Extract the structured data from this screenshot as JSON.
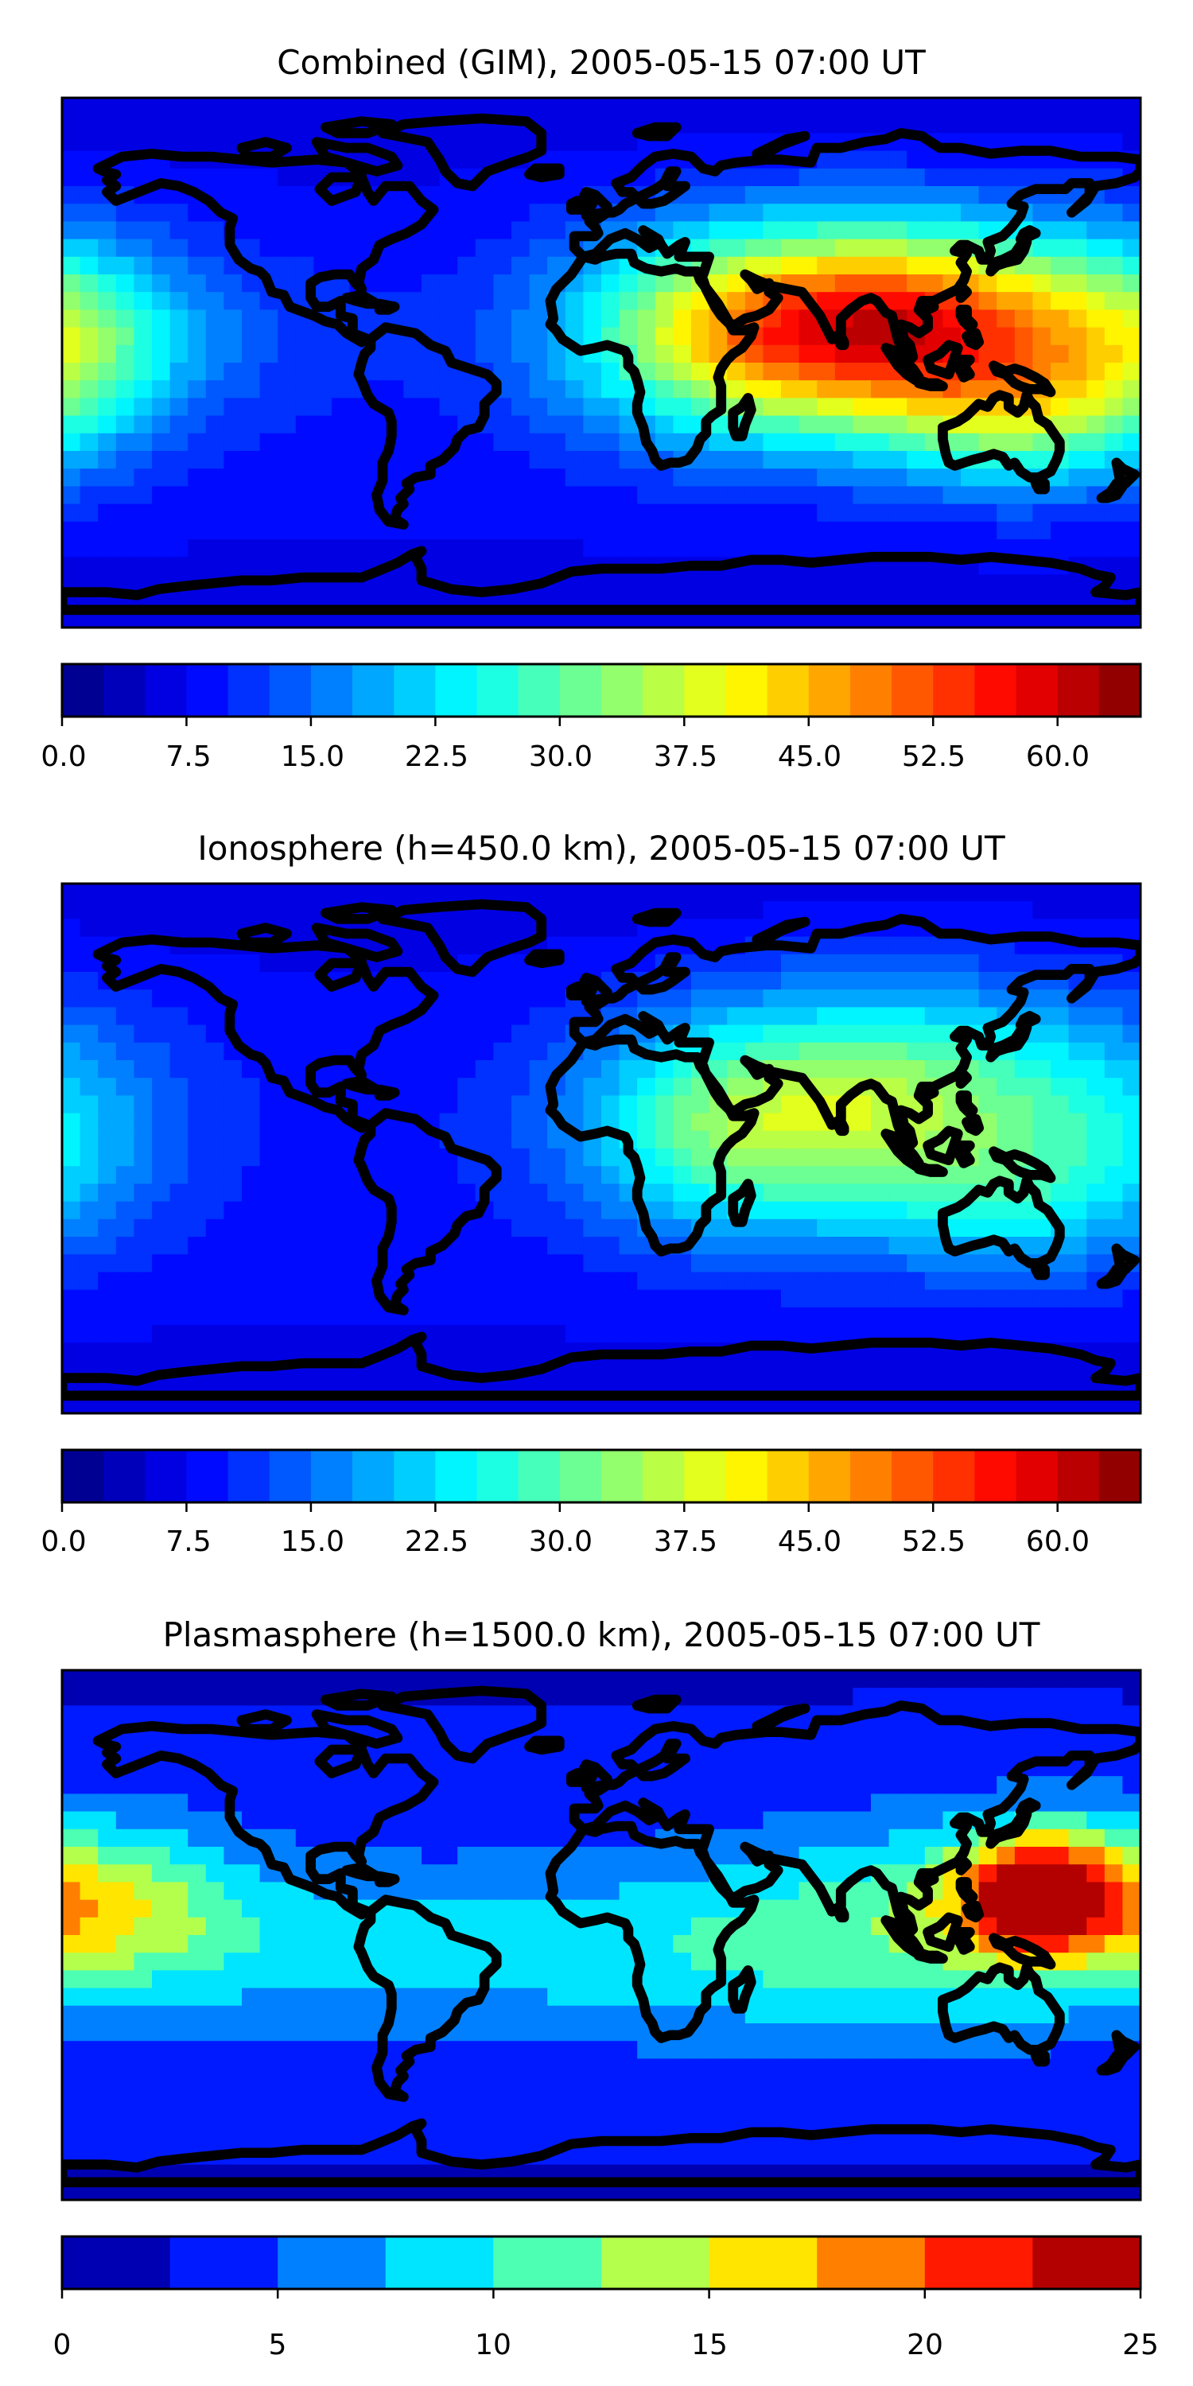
{
  "chart_data": [
    {
      "type": "heatmap",
      "title": "Combined (GIM), 2005-05-15 07:00 UT",
      "projection": "plate-carree world map with coastlines",
      "xlim": [
        -180,
        180
      ],
      "ylim": [
        -90,
        90
      ],
      "colormap": "jet",
      "colorbar": {
        "orientation": "horizontal",
        "range": [
          0,
          65
        ],
        "levels": 26,
        "ticks": [
          0,
          7.5,
          15,
          22.5,
          30,
          37.5,
          45,
          52.5,
          60
        ],
        "tick_labels": [
          "0.0",
          "7.5",
          "15.0",
          "22.5",
          "30.0",
          "37.5",
          "45.0",
          "52.5",
          "60.0"
        ]
      },
      "features": [
        {
          "lon": 105,
          "lat": 12,
          "value": 55,
          "spread_lon": 50,
          "spread_lat": 24
        },
        {
          "lon": 40,
          "lat": 10,
          "value": 28,
          "spread_lon": 40,
          "spread_lat": 25
        },
        {
          "lon": 140,
          "lat": -20,
          "value": 22,
          "spread_lon": 30,
          "spread_lat": 18
        },
        {
          "lon": -175,
          "lat": 5,
          "value": 20,
          "spread_lon": 25,
          "spread_lat": 25
        },
        {
          "lon": -140,
          "lat": 10,
          "value": 10,
          "spread_lon": 40,
          "spread_lat": 20
        }
      ]
    },
    {
      "type": "heatmap",
      "title": "Ionosphere  (h=450.0 km), 2005-05-15 07:00 UT",
      "projection": "plate-carree world map with coastlines",
      "xlim": [
        -180,
        180
      ],
      "ylim": [
        -90,
        90
      ],
      "colormap": "jet",
      "colorbar": {
        "orientation": "horizontal",
        "range": [
          0,
          65
        ],
        "levels": 26,
        "ticks": [
          0,
          7.5,
          15,
          22.5,
          30,
          37.5,
          45,
          52.5,
          60
        ],
        "tick_labels": [
          "0.0",
          "7.5",
          "15.0",
          "22.5",
          "30.0",
          "37.5",
          "45.0",
          "52.5",
          "60.0"
        ]
      },
      "features": [
        {
          "lon": 100,
          "lat": 15,
          "value": 33,
          "spread_lon": 55,
          "spread_lat": 28
        },
        {
          "lon": 40,
          "lat": 5,
          "value": 20,
          "spread_lon": 35,
          "spread_lat": 25
        },
        {
          "lon": 140,
          "lat": -20,
          "value": 15,
          "spread_lon": 30,
          "spread_lat": 18
        },
        {
          "lon": -175,
          "lat": 5,
          "value": 12,
          "spread_lon": 25,
          "spread_lat": 25
        }
      ]
    },
    {
      "type": "heatmap",
      "title": "Plasmasphere (h=1500.0 km), 2005-05-15 07:00 UT",
      "projection": "plate-carree world map with coastlines",
      "xlim": [
        -180,
        180
      ],
      "ylim": [
        -90,
        90
      ],
      "colormap": "jet",
      "colorbar": {
        "orientation": "horizontal",
        "range": [
          0,
          25
        ],
        "levels": 10,
        "ticks": [
          0,
          5,
          10,
          15,
          20,
          25
        ],
        "tick_labels": [
          "0",
          "5",
          "10",
          "15",
          "20",
          "25"
        ]
      },
      "features": [
        {
          "lon": 145,
          "lat": 15,
          "value": 19,
          "spread_lon": 18,
          "spread_lat": 14
        },
        {
          "lon": 120,
          "lat": 5,
          "value": 10,
          "spread_lon": 50,
          "spread_lat": 25
        },
        {
          "lon": -170,
          "lat": 10,
          "value": 13,
          "spread_lon": 35,
          "spread_lat": 20
        },
        {
          "lon": 30,
          "lat": -5,
          "value": 8,
          "spread_lon": 60,
          "spread_lat": 22
        },
        {
          "lon": -90,
          "lat": -5,
          "value": 7,
          "spread_lon": 50,
          "spread_lat": 20
        }
      ]
    }
  ]
}
